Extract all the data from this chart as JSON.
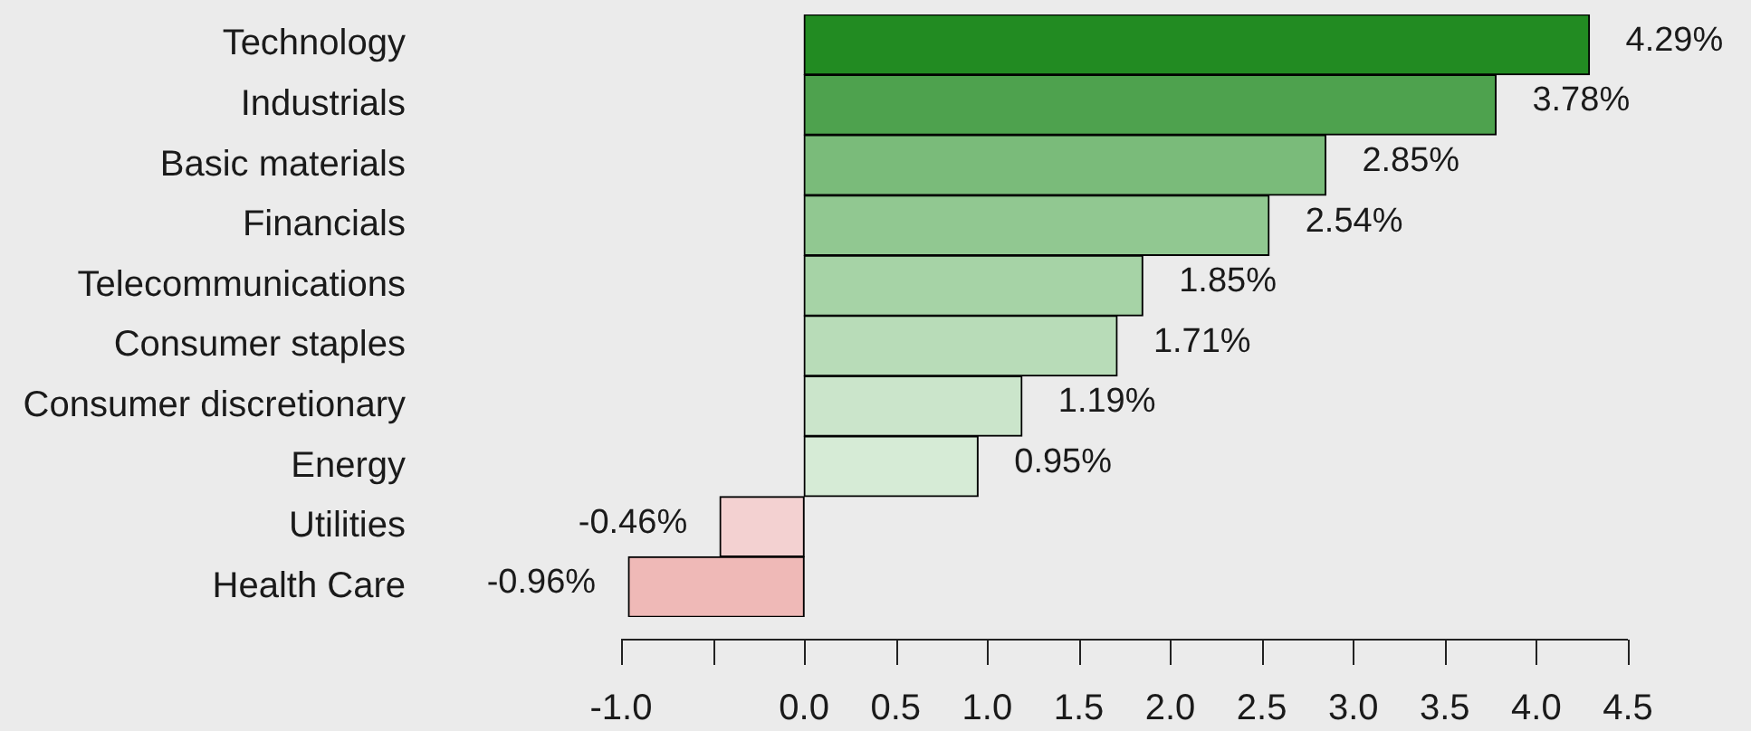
{
  "chart_data": {
    "type": "bar",
    "orientation": "horizontal",
    "categories": [
      "Technology",
      "Industrials",
      "Basic materials",
      "Financials",
      "Telecommunications",
      "Consumer staples",
      "Consumer discretionary",
      "Energy",
      "Utilities",
      "Health Care"
    ],
    "values": [
      4.29,
      3.78,
      2.85,
      2.54,
      1.85,
      1.71,
      1.19,
      0.95,
      -0.46,
      -0.96
    ],
    "colors": [
      "#228b22",
      "#4ea24e",
      "#7abb7a",
      "#91c891",
      "#a6d3a6",
      "#b8dcb8",
      "#cbe5cb",
      "#d6ebd6",
      "#f3d1d1",
      "#efb9b7"
    ],
    "value_labels": [
      "4.29%",
      "3.78%",
      "2.85%",
      "2.54%",
      "1.85%",
      "1.71%",
      "1.19%",
      "0.95%",
      "-0.46%",
      "-0.96%"
    ],
    "xlim": [
      -1,
      4.5
    ],
    "xticks": [
      {
        "value": -1,
        "label": "-1.0"
      },
      {
        "value": -0.5,
        "label": null
      },
      {
        "value": 0,
        "label": "0.0"
      },
      0.5,
      {
        "value": 1,
        "label": "1.0"
      },
      1.5,
      {
        "value": 2,
        "label": "2.0"
      },
      2.5,
      {
        "value": 3,
        "label": "3.0"
      },
      3.5,
      {
        "value": 4,
        "label": "4.0"
      },
      4.5
    ]
  }
}
